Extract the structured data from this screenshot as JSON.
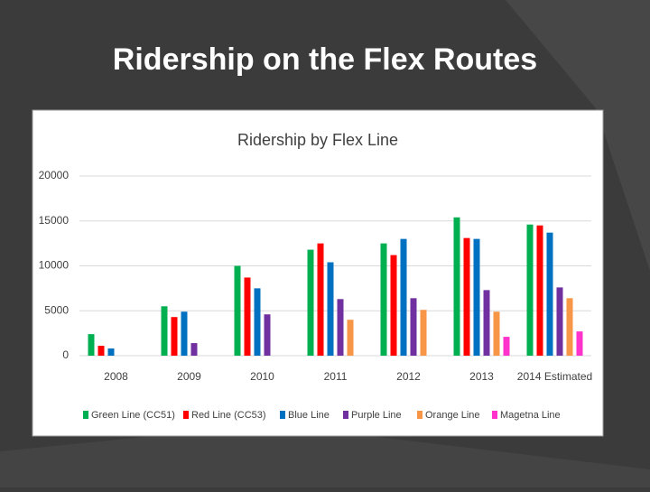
{
  "slide": {
    "title": "Ridership on the Flex Routes"
  },
  "chart_data": {
    "type": "bar",
    "title": "Ridership by Flex Line",
    "categories": [
      "2008",
      "2009",
      "2010",
      "2011",
      "2012",
      "2013",
      "2014 Estimated"
    ],
    "series": [
      {
        "name": "Green Line (CC51)",
        "color": "#00b050",
        "values": [
          2400,
          5500,
          10000,
          11800,
          12500,
          15400,
          14600
        ]
      },
      {
        "name": "Red Line (CC53)",
        "color": "#ff0000",
        "values": [
          1100,
          4300,
          8700,
          12500,
          11200,
          13100,
          14500
        ]
      },
      {
        "name": "Blue Line",
        "color": "#0070c0",
        "values": [
          800,
          4900,
          7500,
          10400,
          13000,
          13000,
          13700
        ]
      },
      {
        "name": "Purple Line",
        "color": "#7030a0",
        "values": [
          null,
          1400,
          4600,
          6300,
          6400,
          7300,
          7600
        ]
      },
      {
        "name": "Orange Line",
        "color": "#f79646",
        "values": [
          null,
          null,
          null,
          4000,
          5100,
          4900,
          6400
        ]
      },
      {
        "name": "Magetna Line",
        "color": "#ff33cc",
        "values": [
          null,
          null,
          null,
          null,
          null,
          2100,
          2700
        ]
      }
    ],
    "ylim": [
      0,
      20000
    ],
    "yticks": [
      0,
      5000,
      10000,
      15000,
      20000
    ],
    "grid": true,
    "legend": "bottom"
  }
}
